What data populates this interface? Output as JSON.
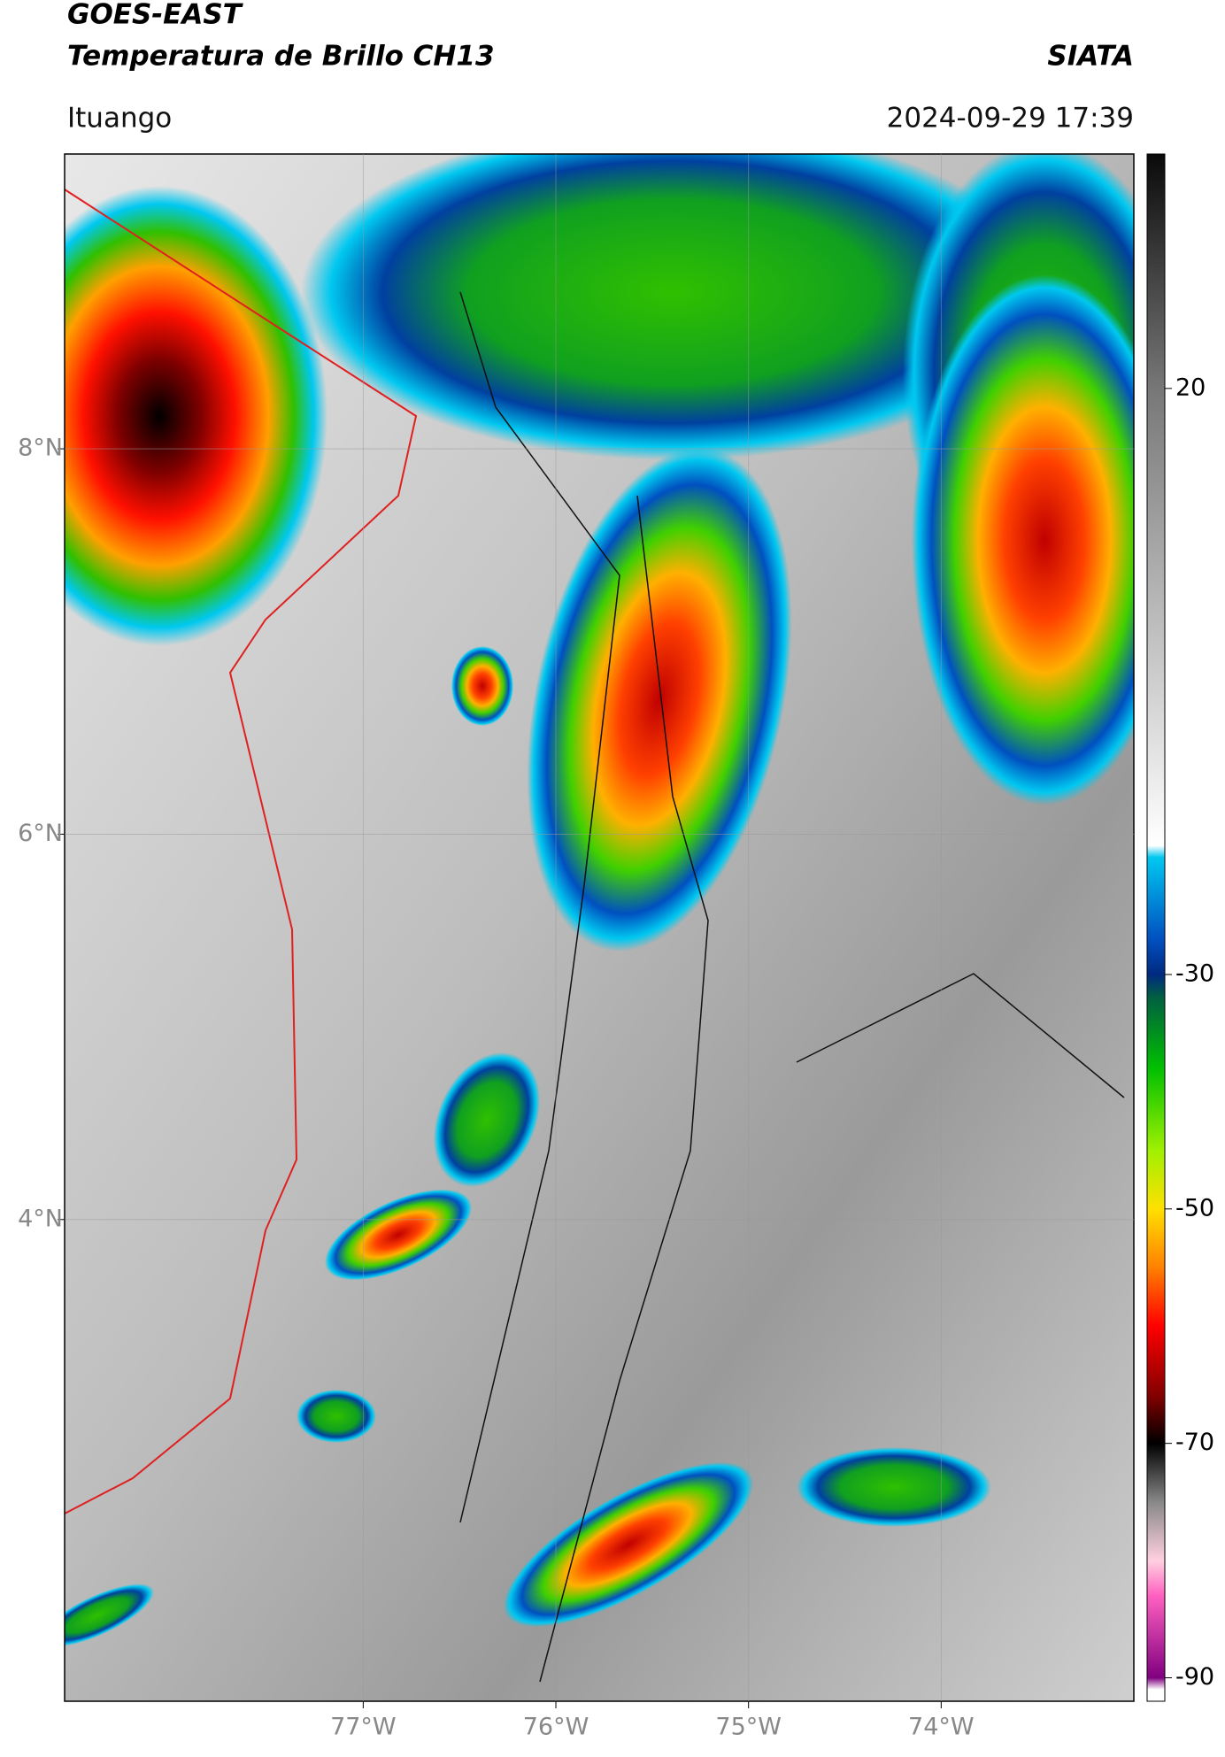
{
  "header": {
    "title_1": "GOES-EAST",
    "title_2": "Temperatura de Brillo CH13",
    "brand": "SIATA",
    "location": "Ituango",
    "timestamp": "2024-09-29 17:39"
  },
  "map": {
    "lonlim": [
      -78.55,
      -73.0
    ],
    "latlim": [
      1.5,
      9.53
    ],
    "xticks": [
      {
        "value": -77,
        "label": "77°W"
      },
      {
        "value": -76,
        "label": "76°W"
      },
      {
        "value": -75,
        "label": "75°W"
      },
      {
        "value": -74,
        "label": "74°W"
      }
    ],
    "yticks": [
      {
        "value": 8,
        "label": "8°N"
      },
      {
        "value": 6,
        "label": "6°N"
      },
      {
        "value": 4,
        "label": "4°N"
      }
    ],
    "grid": true
  },
  "colorbar": {
    "vlim": [
      -92,
      40
    ],
    "ticks": [
      20,
      -30,
      -50,
      -70,
      -90
    ],
    "colormap": [
      {
        "value": 40,
        "color": "#0a0a0a"
      },
      {
        "value": 20,
        "color": "#777777"
      },
      {
        "value": -19,
        "color": "#ffffff"
      },
      {
        "value": -20,
        "color": "#00c8f0"
      },
      {
        "value": -27,
        "color": "#0050c0"
      },
      {
        "value": -30,
        "color": "#002a80"
      },
      {
        "value": -32,
        "color": "#006040"
      },
      {
        "value": -38,
        "color": "#00c000"
      },
      {
        "value": -45,
        "color": "#a0f000"
      },
      {
        "value": -50,
        "color": "#ffe000"
      },
      {
        "value": -55,
        "color": "#ff8000"
      },
      {
        "value": -60,
        "color": "#ff0000"
      },
      {
        "value": -66,
        "color": "#800000"
      },
      {
        "value": -70,
        "color": "#000000"
      },
      {
        "value": -75,
        "color": "#888888"
      },
      {
        "value": -80,
        "color": "#ffd0e0"
      },
      {
        "value": -83,
        "color": "#ff60c0"
      },
      {
        "value": -90,
        "color": "#800080"
      },
      {
        "value": -91,
        "color": "#ffffff"
      }
    ]
  }
}
